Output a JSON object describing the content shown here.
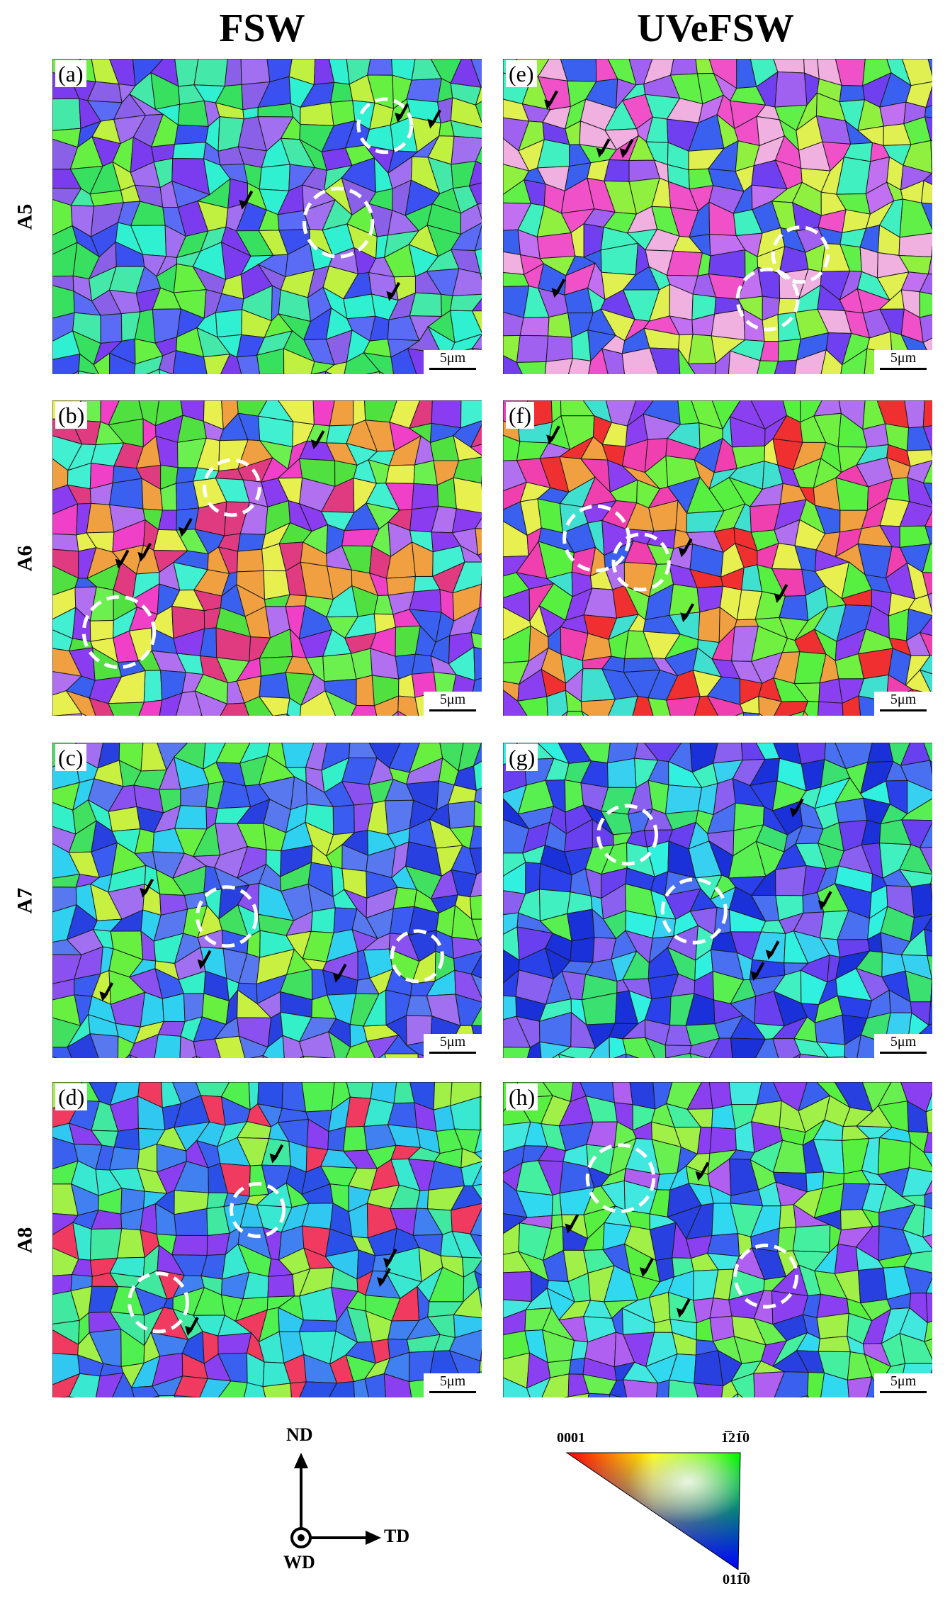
{
  "columns": [
    "FSW",
    "UVeFSW"
  ],
  "rows": [
    "A5",
    "A6",
    "A7",
    "A8"
  ],
  "panels": [
    {
      "letter": "(a)",
      "scale": "5μm",
      "seed": 11,
      "palette": [
        "#7b3cf0",
        "#5a6cf5",
        "#38e060",
        "#2ff0d0",
        "#a070f0",
        "#66f042",
        "#3a50f0",
        "#c0f040",
        "#8a60e8",
        "#44e8a8"
      ]
    },
    {
      "letter": "(b)",
      "scale": "5μm",
      "seed": 23,
      "palette": [
        "#8a3cf0",
        "#f040c8",
        "#50e040",
        "#3a60f0",
        "#e8f050",
        "#f0a040",
        "#b070f0",
        "#40f0d0",
        "#e03a80",
        "#6cf050"
      ]
    },
    {
      "letter": "(c)",
      "scale": "5μm",
      "seed": 37,
      "palette": [
        "#3a5cf0",
        "#42e060",
        "#8a50f0",
        "#34f0c8",
        "#2840e0",
        "#68f040",
        "#a070f0",
        "#30d0f0",
        "#c8f040",
        "#5878f0"
      ]
    },
    {
      "letter": "(d)",
      "scale": "5μm",
      "seed": 41,
      "palette": [
        "#3a60f0",
        "#40e8a0",
        "#2b50e8",
        "#8a40f0",
        "#50f050",
        "#30c8f0",
        "#f03a60",
        "#a0f048",
        "#4080f0",
        "#38e8d0"
      ]
    },
    {
      "letter": "(e)",
      "scale": "5μm",
      "seed": 53,
      "palette": [
        "#a060f0",
        "#60f048",
        "#f050c8",
        "#e0f050",
        "#7040f0",
        "#40f0c0",
        "#f0b0e0",
        "#3a60f0",
        "#90f040",
        "#c070f0"
      ]
    },
    {
      "letter": "(f)",
      "scale": "5μm",
      "seed": 67,
      "palette": [
        "#8a40f0",
        "#58f040",
        "#f040b0",
        "#f0a040",
        "#3a60f0",
        "#e8f050",
        "#f03030",
        "#40e0d0",
        "#b070f0",
        "#70f040"
      ]
    },
    {
      "letter": "(g)",
      "scale": "5μm",
      "seed": 71,
      "palette": [
        "#2a40e8",
        "#38d0f0",
        "#3ae070",
        "#6840f0",
        "#40f0c0",
        "#1a30d8",
        "#58f050",
        "#8a60f0",
        "#30f0e0",
        "#4870f0"
      ]
    },
    {
      "letter": "(h)",
      "scale": "5μm",
      "seed": 89,
      "palette": [
        "#3a60f0",
        "#58f040",
        "#30d8f0",
        "#8a40f0",
        "#44f0a0",
        "#2840e0",
        "#a0f048",
        "#b060f0",
        "#40e8e0",
        "#68f050"
      ]
    }
  ],
  "axes": {
    "up": "ND",
    "right": "TD",
    "center": "WD"
  },
  "ipf_key": {
    "left": "0001",
    "top_right": "1̅21̅0",
    "bottom": "011̅0"
  }
}
